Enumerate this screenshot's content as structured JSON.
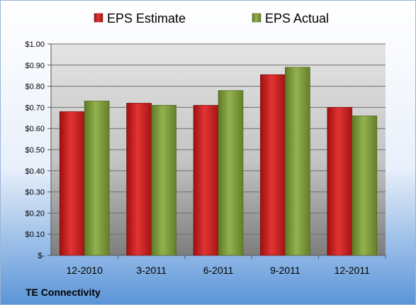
{
  "chart_data": {
    "type": "bar",
    "categories": [
      "12-2010",
      "3-2011",
      "6-2011",
      "9-2011",
      "12-2011"
    ],
    "series": [
      {
        "name": "EPS Estimate",
        "color": "#cc1f1f",
        "values": [
          0.68,
          0.72,
          0.71,
          0.855,
          0.7
        ]
      },
      {
        "name": "EPS Actual",
        "color": "#7e9a3c",
        "values": [
          0.73,
          0.71,
          0.78,
          0.89,
          0.66
        ]
      }
    ],
    "ylim": [
      0,
      1.0
    ],
    "yticks": [
      {
        "value": 0,
        "label": "$-"
      },
      {
        "value": 0.1,
        "label": "$0.10"
      },
      {
        "value": 0.2,
        "label": "$0.20"
      },
      {
        "value": 0.3,
        "label": "$0.30"
      },
      {
        "value": 0.4,
        "label": "$0.40"
      },
      {
        "value": 0.5,
        "label": "$0.50"
      },
      {
        "value": 0.6,
        "label": "$0.60"
      },
      {
        "value": 0.7,
        "label": "$0.70"
      },
      {
        "value": 0.8,
        "label": "$0.80"
      },
      {
        "value": 0.9,
        "label": "$0.90"
      },
      {
        "value": 1.0,
        "label": "$1.00"
      }
    ],
    "grid": true,
    "legend_position": "top",
    "footer": "TE Connectivity"
  }
}
